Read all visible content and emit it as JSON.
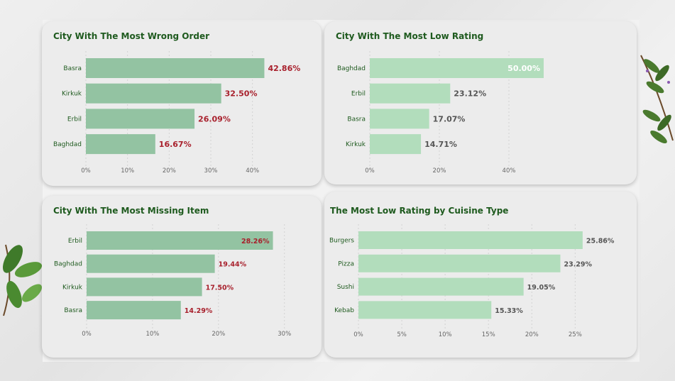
{
  "colors": {
    "bar_dark": "#93c3a2",
    "bar_light": "#b2ddbc",
    "label_red": "#a8202c",
    "label_gray": "#555555",
    "label_white": "#ffffff",
    "title_green": "#1e5a1e",
    "city_green": "#1e5a1e",
    "axis_gray": "#666666"
  },
  "chart_data": [
    {
      "type": "bar",
      "orientation": "horizontal",
      "title": "City With The Most Wrong Order",
      "categories": [
        "Basra",
        "Kirkuk",
        "Erbil",
        "Baghdad"
      ],
      "values": [
        42.86,
        32.5,
        26.09,
        16.67
      ],
      "value_labels": [
        "42.86%",
        "32.50%",
        "26.09%",
        "16.67%"
      ],
      "xlim": [
        0,
        45
      ],
      "ticks": [
        0,
        10,
        20,
        30,
        40
      ],
      "tick_labels": [
        "0%",
        "10%",
        "20%",
        "30%",
        "40%"
      ],
      "grid": true
    },
    {
      "type": "bar",
      "orientation": "horizontal",
      "title": "City With The Most Low Rating",
      "categories": [
        "Baghdad",
        "Erbil",
        "Basra",
        "Kirkuk"
      ],
      "values": [
        50.0,
        23.12,
        17.07,
        14.71
      ],
      "value_labels": [
        "50.00%",
        "23.12%",
        "17.07%",
        "14.71%"
      ],
      "xlim": [
        0,
        60
      ],
      "ticks": [
        0,
        20,
        40
      ],
      "tick_labels": [
        "0%",
        "20%",
        "40%"
      ],
      "grid": true
    },
    {
      "type": "bar",
      "orientation": "horizontal",
      "title": "City With The Most Missing Item",
      "categories": [
        "Erbil",
        "Baghdad",
        "Kirkuk",
        "Basra"
      ],
      "values": [
        28.26,
        19.44,
        17.5,
        14.29
      ],
      "value_labels": [
        "28.26%",
        "19.44%",
        "17.50%",
        "14.29%"
      ],
      "xlim": [
        0,
        31
      ],
      "ticks": [
        0,
        10,
        20,
        30
      ],
      "tick_labels": [
        "0%",
        "10%",
        "20%",
        "30%"
      ],
      "grid": true
    },
    {
      "type": "bar",
      "orientation": "horizontal",
      "title": "The Most Low Rating by Cuisine Type",
      "categories": [
        "Burgers",
        "Pizza",
        "Sushi",
        "Kebab"
      ],
      "values": [
        25.86,
        23.29,
        19.05,
        15.33
      ],
      "value_labels": [
        "25.86%",
        "23.29%",
        "19.05%",
        "15.33%"
      ],
      "xlim": [
        0,
        28
      ],
      "ticks": [
        0,
        5,
        10,
        15,
        20,
        25
      ],
      "tick_labels": [
        "0%",
        "5%",
        "10%",
        "15%",
        "20%",
        "25%"
      ],
      "grid": true
    }
  ]
}
